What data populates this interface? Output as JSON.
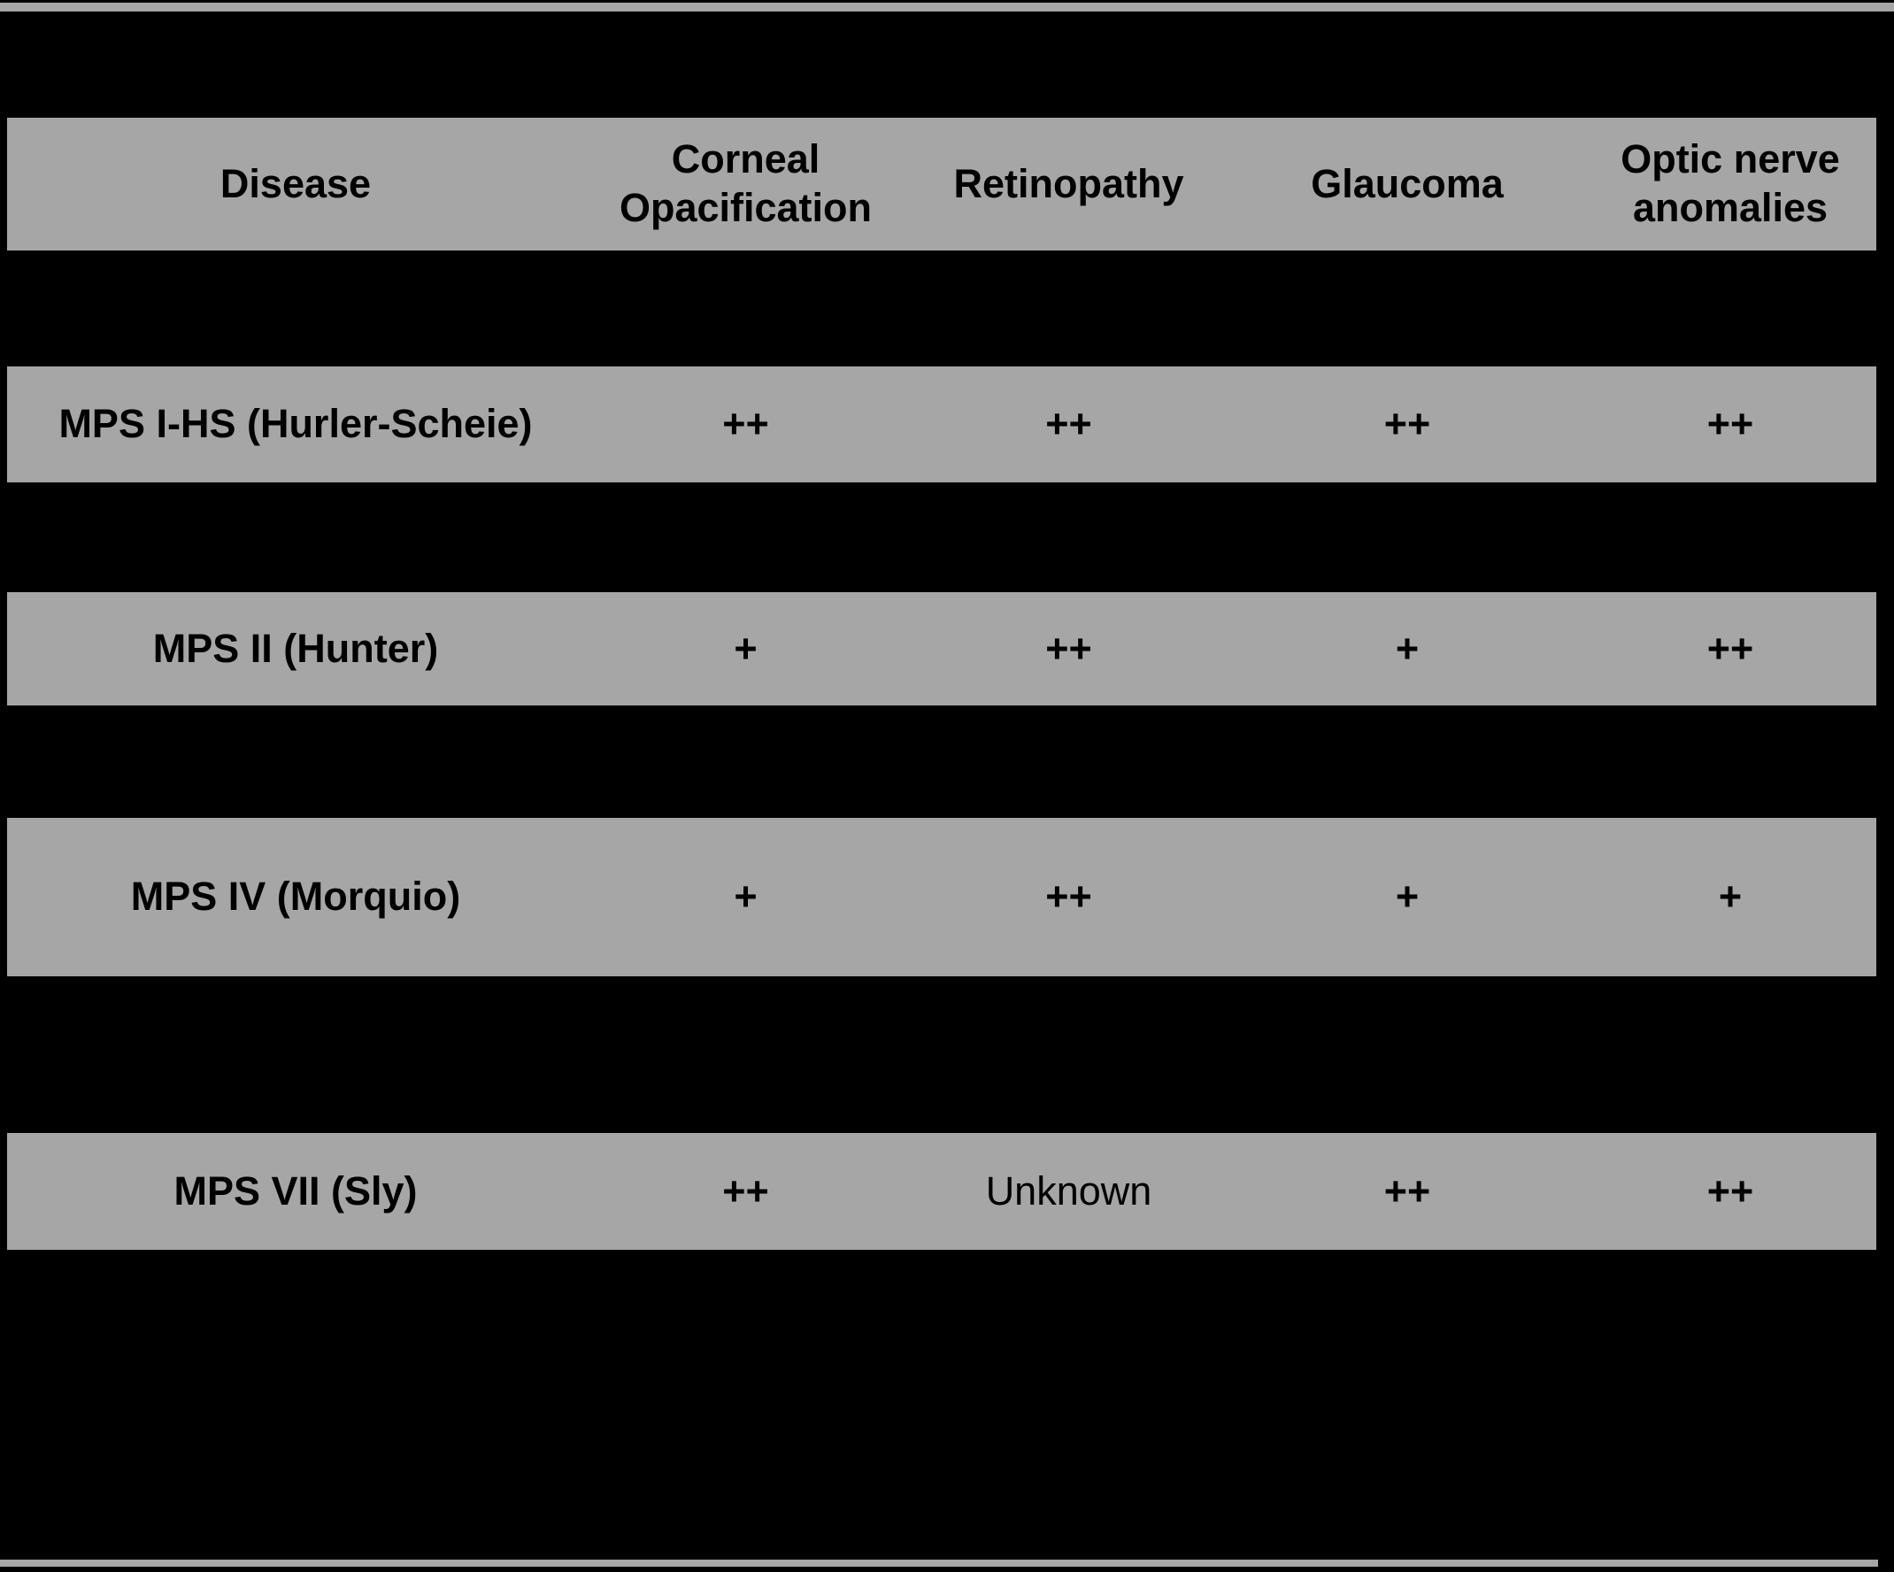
{
  "chart_data": {
    "type": "table",
    "columns": [
      "Disease",
      "Corneal Opacification",
      "Retinopathy",
      "Glaucoma",
      "Optic nerve anomalies"
    ],
    "rows": [
      {
        "disease": "MPS I-HS (Hurler-Scheie)",
        "values": [
          "++",
          "++",
          "++",
          "++"
        ]
      },
      {
        "disease": "MPS II (Hunter)",
        "values": [
          "+",
          "++",
          "+",
          "++"
        ]
      },
      {
        "disease": "MPS IV (Morquio)",
        "values": [
          "+",
          "++",
          "+",
          "+"
        ]
      },
      {
        "disease": "MPS VII (Sly)",
        "values": [
          "++",
          "Unknown",
          "++",
          "++"
        ]
      }
    ],
    "layout_hints": {
      "row_background": "#a6a6a6",
      "page_background": "#000000",
      "text_color": "#000000",
      "top_and_bottom_rules": true
    }
  }
}
